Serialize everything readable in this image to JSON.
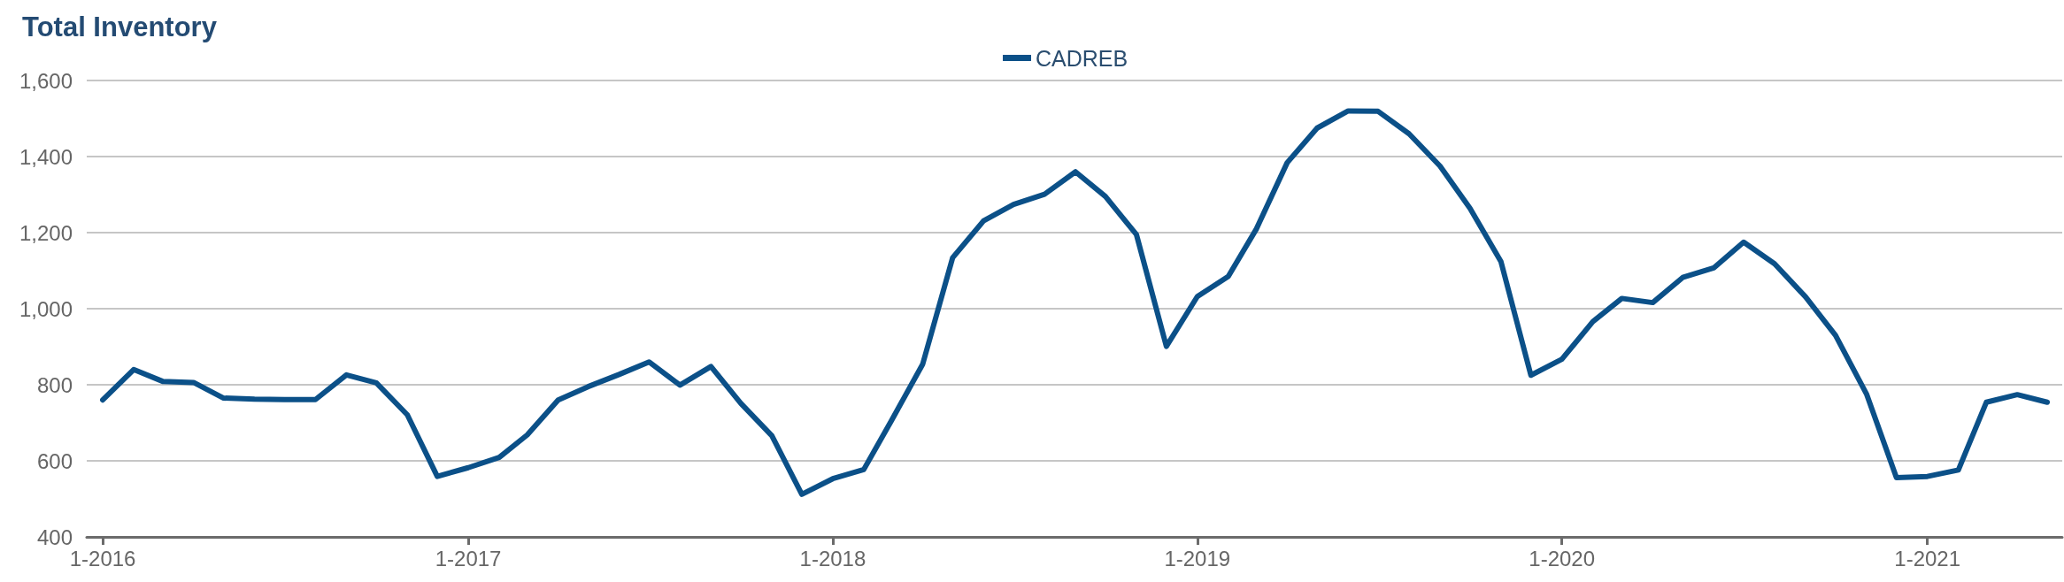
{
  "chart_data": {
    "type": "line",
    "title": "Total Inventory",
    "x": [
      "2016-01",
      "2016-02",
      "2016-03",
      "2016-04",
      "2016-05",
      "2016-06",
      "2016-07",
      "2016-08",
      "2016-09",
      "2016-10",
      "2016-11",
      "2016-12",
      "2017-01",
      "2017-02",
      "2017-03",
      "2017-04",
      "2017-05",
      "2017-06",
      "2017-07",
      "2017-08",
      "2017-09",
      "2017-10",
      "2017-11",
      "2017-12",
      "2018-01",
      "2018-02",
      "2018-03",
      "2018-04",
      "2018-05",
      "2018-06",
      "2018-07",
      "2018-08",
      "2018-09",
      "2018-10",
      "2018-11",
      "2018-12",
      "2019-01",
      "2019-02",
      "2019-03",
      "2019-04",
      "2019-05",
      "2019-06",
      "2019-07",
      "2019-08",
      "2019-09",
      "2019-10",
      "2019-11",
      "2019-12",
      "2020-01",
      "2020-02",
      "2020-03",
      "2020-04",
      "2020-05",
      "2020-06",
      "2020-07",
      "2020-08",
      "2020-09",
      "2020-10",
      "2020-11",
      "2020-12",
      "2021-01",
      "2021-02",
      "2021-03",
      "2021-04",
      "2021-05"
    ],
    "series": [
      {
        "name": "CADREB",
        "color": "#0b5088",
        "values": [
          760,
          840,
          809,
          806,
          765,
          762,
          761,
          761,
          826,
          805,
          721,
          559,
          582,
          609,
          668,
          760,
          795,
          827,
          860,
          799,
          848,
          751,
          666,
          512,
          553,
          577,
          707,
          854,
          1134,
          1231,
          1274,
          1301,
          1360,
          1295,
          1195,
          901,
          1032,
          1085,
          1209,
          1384,
          1475,
          1520,
          1519,
          1460,
          1375,
          1264,
          1124,
          825,
          867,
          966,
          1027,
          1016,
          1082,
          1107,
          1175,
          1118,
          1031,
          930,
          776,
          556,
          559,
          576,
          754,
          774,
          754
        ]
      }
    ],
    "xlim": [
      "2015-12-16",
      "2021-05-16"
    ],
    "xticks": [
      {
        "value": "2016-01",
        "label": "1-2016"
      },
      {
        "value": "2017-01",
        "label": "1-2017"
      },
      {
        "value": "2018-01",
        "label": "1-2018"
      },
      {
        "value": "2019-01",
        "label": "1-2019"
      },
      {
        "value": "2020-01",
        "label": "1-2020"
      },
      {
        "value": "2021-01",
        "label": "1-2021"
      }
    ],
    "ylim": [
      400,
      1600
    ],
    "yticks": [
      400,
      600,
      800,
      {
        "value": 1000,
        "label": "1,000"
      },
      {
        "value": 1200,
        "label": "1,200"
      },
      {
        "value": 1400,
        "label": "1,400"
      },
      {
        "value": 1600,
        "label": "1,600"
      }
    ],
    "grid": "y",
    "legend": "top"
  }
}
